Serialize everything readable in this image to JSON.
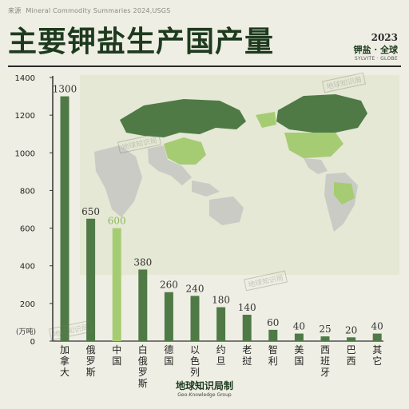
{
  "source": {
    "label": "来源",
    "text": "Mineral Commodity Summaries 2024,USGS"
  },
  "title": "主要钾盐生产国产量",
  "badge": {
    "year": "2023",
    "label": "钾盐 · 全球",
    "sub": "SYLVITE · GLOBE"
  },
  "watermark": "地球知识局",
  "brand": {
    "cn": "地球知识局制",
    "en": "Geo-Knowledge Group"
  },
  "colors": {
    "bar": "#4f7a46",
    "highlight": "#a6cc73",
    "highlight_label": "#8fb85e",
    "map_land": "#c9cbc4",
    "map_ocean": "#eeeee4",
    "map_green": "#4f7a46",
    "map_light": "#a6cc73"
  },
  "chart_data": {
    "type": "bar",
    "ylabel": "(万吨)",
    "ylim": [
      0,
      1400
    ],
    "yticks": [
      0,
      200,
      400,
      600,
      800,
      1000,
      1200,
      1400
    ],
    "categories": [
      "加拿大",
      "俄罗斯",
      "中国",
      "白俄罗斯",
      "德国",
      "以色列",
      "约旦",
      "老挝",
      "智利",
      "美国",
      "西班牙",
      "巴西",
      "其它"
    ],
    "values": [
      1300,
      650,
      600,
      380,
      260,
      240,
      180,
      140,
      60,
      40,
      25,
      20,
      40
    ],
    "highlight": "中国",
    "grid": false
  }
}
